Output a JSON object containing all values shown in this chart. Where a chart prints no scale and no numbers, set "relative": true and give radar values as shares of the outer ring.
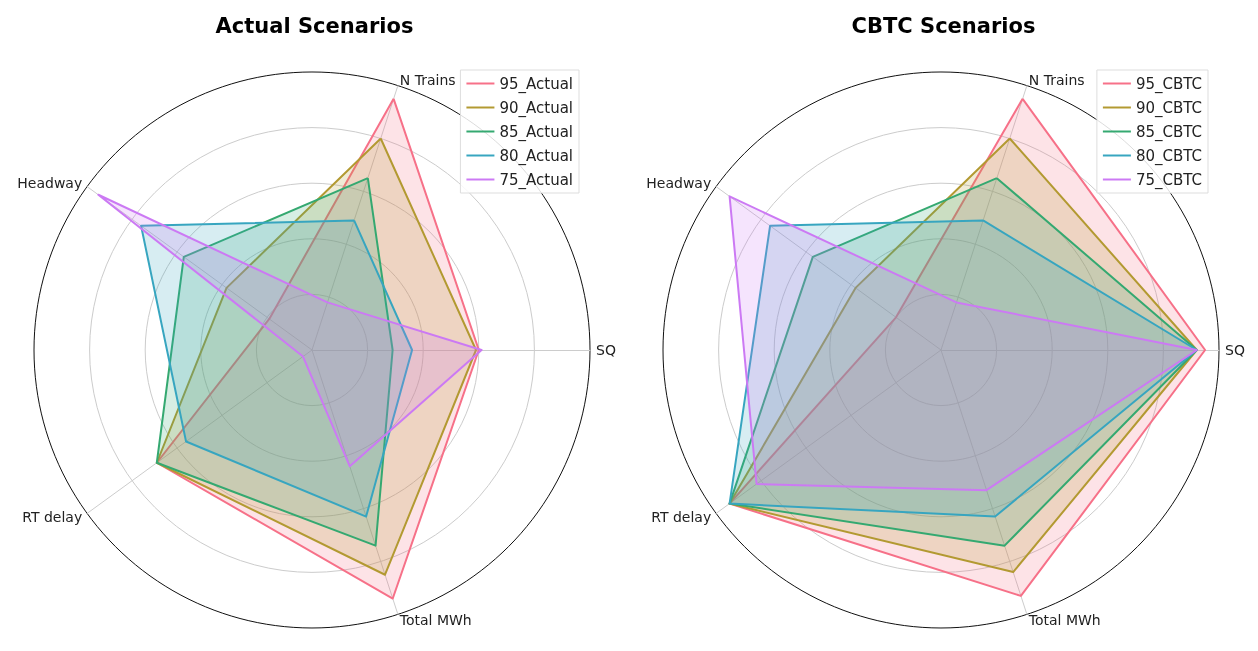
{
  "chart_data": [
    {
      "type": "radar",
      "title": "Actual Scenarios",
      "relative": true,
      "grid": true,
      "legend": "top right",
      "marker": "none",
      "line_style": "solid",
      "categories": [
        "N Trains",
        "SQ",
        "Total MWh",
        "RT delay",
        "Headway"
      ],
      "series": [
        {
          "name": "95_Actual",
          "color": "#f77189",
          "values": [
            0.95,
            0.6,
            0.94,
            0.69,
            0.19
          ]
        },
        {
          "name": "90_Actual",
          "color": "#b39a32",
          "values": [
            0.8,
            0.59,
            0.85,
            0.69,
            0.38
          ]
        },
        {
          "name": "85_Actual",
          "color": "#35a971",
          "values": [
            0.65,
            0.29,
            0.74,
            0.69,
            0.57
          ]
        },
        {
          "name": "80_Actual",
          "color": "#38a6c0",
          "values": [
            0.49,
            0.36,
            0.63,
            0.56,
            0.76
          ]
        },
        {
          "name": "75_Actual",
          "color": "#cc7af4",
          "values": [
            0.18,
            0.61,
            0.44,
            0.04,
            0.95
          ]
        }
      ]
    },
    {
      "type": "radar",
      "title": "CBTC Scenarios",
      "relative": true,
      "grid": true,
      "legend": "top right",
      "marker": "none",
      "line_style": "solid",
      "categories": [
        "N Trains",
        "SQ",
        "Total MWh",
        "RT delay",
        "Headway"
      ],
      "series": [
        {
          "name": "95_CBTC",
          "color": "#f77189",
          "values": [
            0.95,
            0.95,
            0.93,
            0.94,
            0.2
          ]
        },
        {
          "name": "90_CBTC",
          "color": "#b39a32",
          "values": [
            0.8,
            0.92,
            0.84,
            0.94,
            0.38
          ]
        },
        {
          "name": "85_CBTC",
          "color": "#35a971",
          "values": [
            0.65,
            0.92,
            0.74,
            0.94,
            0.57
          ]
        },
        {
          "name": "80_CBTC",
          "color": "#38a6c0",
          "values": [
            0.49,
            0.92,
            0.63,
            0.94,
            0.76
          ]
        },
        {
          "name": "75_CBTC",
          "color": "#cc7af4",
          "values": [
            0.18,
            0.92,
            0.53,
            0.82,
            0.94
          ]
        }
      ]
    }
  ]
}
